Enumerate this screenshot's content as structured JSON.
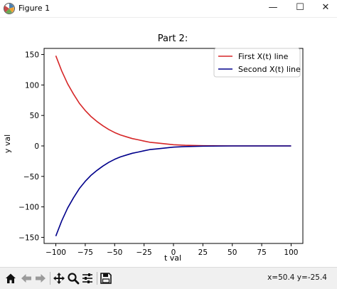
{
  "window": {
    "title": "Figure 1",
    "minimize_glyph": "—",
    "maximize_glyph": "☐",
    "close_glyph": "✕"
  },
  "toolbar": {
    "icons": [
      "home-icon",
      "back-arrow-icon",
      "forward-arrow-icon",
      "pan-icon",
      "zoom-icon",
      "subplots-config-icon",
      "save-icon"
    ],
    "coords": "x=50.4 y=-25.4"
  },
  "chart_data": {
    "type": "line",
    "title": "Part 2:",
    "xlabel": "t val",
    "ylabel": "y val",
    "xlim": [
      -110,
      110
    ],
    "ylim": [
      -160,
      160
    ],
    "xticks": [
      -100,
      -75,
      -50,
      -25,
      0,
      25,
      50,
      75,
      100
    ],
    "xtick_labels": [
      "−100",
      "−75",
      "−50",
      "−25",
      "0",
      "25",
      "50",
      "75",
      "100"
    ],
    "yticks": [
      -150,
      -100,
      -50,
      0,
      50,
      100,
      150
    ],
    "ytick_labels": [
      "−150",
      "−100",
      "−50",
      "0",
      "50",
      "100",
      "150"
    ],
    "grid": false,
    "legend_position": "top-right",
    "series": [
      {
        "name": "First X(t) line",
        "color": "#d62728",
        "x": [
          -100,
          -95,
          -90,
          -85,
          -80,
          -75,
          -70,
          -65,
          -60,
          -55,
          -50,
          -45,
          -40,
          -35,
          -30,
          -25,
          -20,
          -15,
          -10,
          -5,
          0,
          10,
          25,
          50,
          75,
          100
        ],
        "y": [
          148,
          123,
          102,
          85,
          70,
          58,
          48,
          40,
          33,
          27,
          22,
          18,
          15,
          12,
          10,
          8,
          6,
          5,
          4,
          3,
          2,
          1,
          0.3,
          0,
          0,
          0
        ]
      },
      {
        "name": "Second X(t) line",
        "color": "#00008b",
        "x": [
          -100,
          -95,
          -90,
          -85,
          -80,
          -75,
          -70,
          -65,
          -60,
          -55,
          -50,
          -45,
          -40,
          -35,
          -30,
          -25,
          -20,
          -15,
          -10,
          -5,
          0,
          10,
          25,
          50,
          75,
          100
        ],
        "y": [
          -148,
          -123,
          -102,
          -85,
          -70,
          -58,
          -48,
          -40,
          -33,
          -27,
          -22,
          -18,
          -15,
          -12,
          -10,
          -8,
          -6,
          -5,
          -4,
          -3,
          -2,
          -1,
          -0.3,
          0,
          0,
          0
        ]
      }
    ]
  }
}
